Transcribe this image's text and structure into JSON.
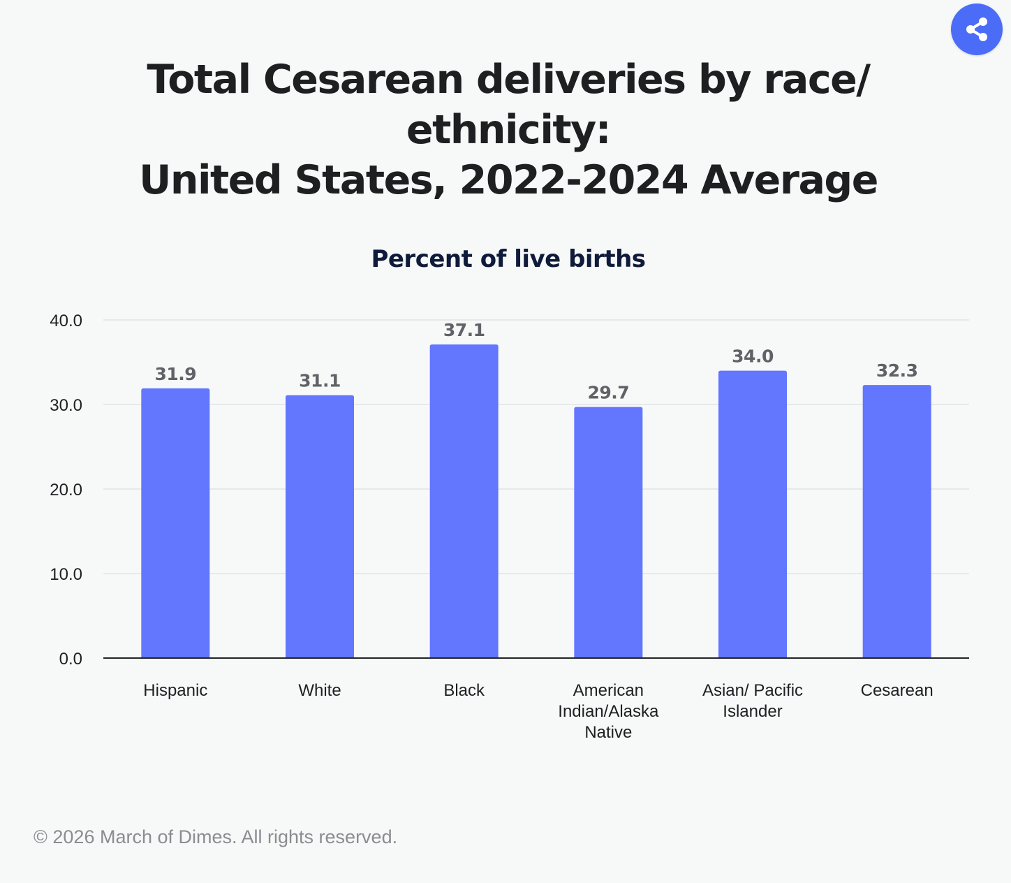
{
  "share_button": {
    "icon": "share-icon",
    "color": "#4a6cf7"
  },
  "footer": {
    "copyright": "© 2026 March of Dimes. All rights reserved."
  },
  "chart_data": {
    "type": "bar",
    "title_lines": [
      "Total Cesarean deliveries by race/",
      "ethnicity:",
      "United States, 2022-2024 Average"
    ],
    "subtitle": "Percent of live births",
    "categories": [
      [
        "Hispanic"
      ],
      [
        "White"
      ],
      [
        "Black"
      ],
      [
        "American",
        "Indian/Alaska",
        "Native"
      ],
      [
        "Asian/ Pacific",
        "Islander"
      ],
      [
        "Cesarean"
      ]
    ],
    "values": [
      31.9,
      31.1,
      37.1,
      29.7,
      34.0,
      32.3
    ],
    "value_labels": [
      "31.9",
      "31.1",
      "37.1",
      "29.7",
      "34.0",
      "32.3"
    ],
    "ylim": [
      0,
      40
    ],
    "yticks": [
      "0.0",
      "10.0",
      "20.0",
      "30.0",
      "40.0"
    ],
    "bar_color": "#6276fe",
    "grid": true,
    "legend": "none"
  }
}
